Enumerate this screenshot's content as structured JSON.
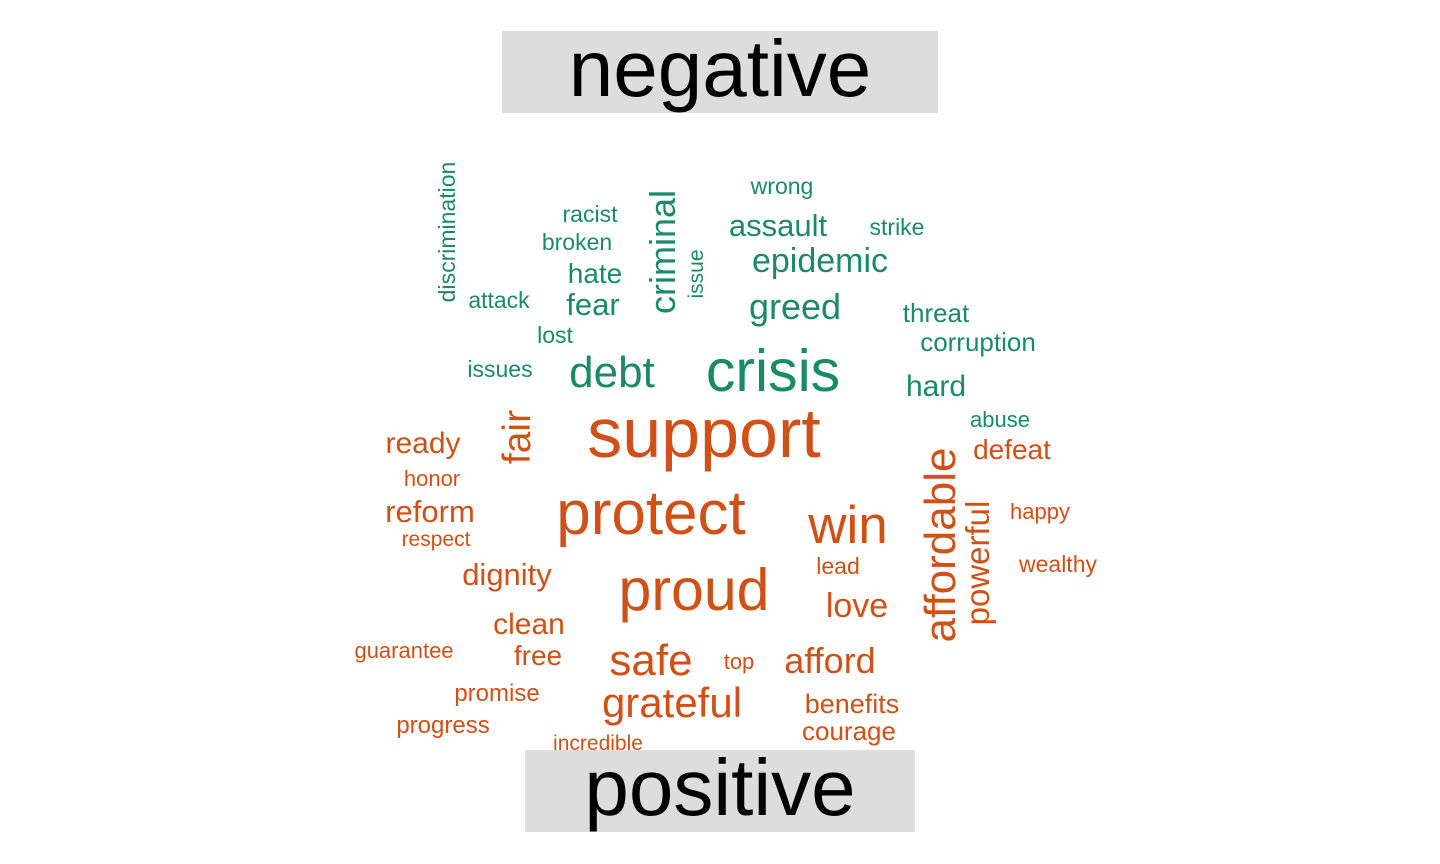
{
  "chart_data": {
    "type": "wordcloud",
    "groups": [
      {
        "label": "negative",
        "color": "#1b8a66",
        "words": [
          {
            "text": "crisis",
            "size": 76,
            "rotate": 0
          },
          {
            "text": "debt",
            "size": 56,
            "rotate": 0
          },
          {
            "text": "greed",
            "size": 46,
            "rotate": 0
          },
          {
            "text": "criminal",
            "size": 46,
            "rotate": -90
          },
          {
            "text": "epidemic",
            "size": 44,
            "rotate": 0
          },
          {
            "text": "assault",
            "size": 40,
            "rotate": 0
          },
          {
            "text": "fear",
            "size": 40,
            "rotate": 0
          },
          {
            "text": "hard",
            "size": 38,
            "rotate": 0
          },
          {
            "text": "hate",
            "size": 36,
            "rotate": 0
          },
          {
            "text": "threat",
            "size": 33,
            "rotate": 0
          },
          {
            "text": "corruption",
            "size": 33,
            "rotate": 0
          },
          {
            "text": "discrimination",
            "size": 30,
            "rotate": -90
          },
          {
            "text": "attack",
            "size": 30,
            "rotate": 0
          },
          {
            "text": "lost",
            "size": 30,
            "rotate": 0
          },
          {
            "text": "broken",
            "size": 30,
            "rotate": 0
          },
          {
            "text": "racist",
            "size": 29,
            "rotate": 0
          },
          {
            "text": "wrong",
            "size": 29,
            "rotate": 0
          },
          {
            "text": "strike",
            "size": 29,
            "rotate": 0
          },
          {
            "text": "issues",
            "size": 29,
            "rotate": 0
          },
          {
            "text": "abuse",
            "size": 28,
            "rotate": 0
          },
          {
            "text": "issue",
            "size": 27,
            "rotate": -90
          }
        ]
      },
      {
        "label": "positive",
        "color": "#d05117",
        "words": [
          {
            "text": "support",
            "size": 90,
            "rotate": 0
          },
          {
            "text": "protect",
            "size": 80,
            "rotate": 0
          },
          {
            "text": "proud",
            "size": 76,
            "rotate": 0
          },
          {
            "text": "win",
            "size": 68,
            "rotate": 0
          },
          {
            "text": "affordable",
            "size": 56,
            "rotate": -90
          },
          {
            "text": "safe",
            "size": 56,
            "rotate": 0
          },
          {
            "text": "grateful",
            "size": 54,
            "rotate": 0
          },
          {
            "text": "fair",
            "size": 50,
            "rotate": -90
          },
          {
            "text": "afford",
            "size": 46,
            "rotate": 0
          },
          {
            "text": "love",
            "size": 44,
            "rotate": 0
          },
          {
            "text": "powerful",
            "size": 42,
            "rotate": -90
          },
          {
            "text": "reform",
            "size": 40,
            "rotate": 0
          },
          {
            "text": "dignity",
            "size": 40,
            "rotate": 0
          },
          {
            "text": "ready",
            "size": 38,
            "rotate": 0
          },
          {
            "text": "clean",
            "size": 38,
            "rotate": 0
          },
          {
            "text": "defeat",
            "size": 36,
            "rotate": 0
          },
          {
            "text": "free",
            "size": 36,
            "rotate": 0
          },
          {
            "text": "benefits",
            "size": 34,
            "rotate": 0
          },
          {
            "text": "courage",
            "size": 33,
            "rotate": 0
          },
          {
            "text": "promise",
            "size": 31,
            "rotate": 0
          },
          {
            "text": "progress",
            "size": 31,
            "rotate": 0
          },
          {
            "text": "lead",
            "size": 30,
            "rotate": 0
          },
          {
            "text": "wealthy",
            "size": 30,
            "rotate": 0
          },
          {
            "text": "honor",
            "size": 28,
            "rotate": 0
          },
          {
            "text": "happy",
            "size": 28,
            "rotate": 0
          },
          {
            "text": "guarantee",
            "size": 28,
            "rotate": 0
          },
          {
            "text": "top",
            "size": 28,
            "rotate": 0
          },
          {
            "text": "respect",
            "size": 27,
            "rotate": 0
          },
          {
            "text": "incredible",
            "size": 27,
            "rotate": 0
          }
        ]
      }
    ]
  }
}
